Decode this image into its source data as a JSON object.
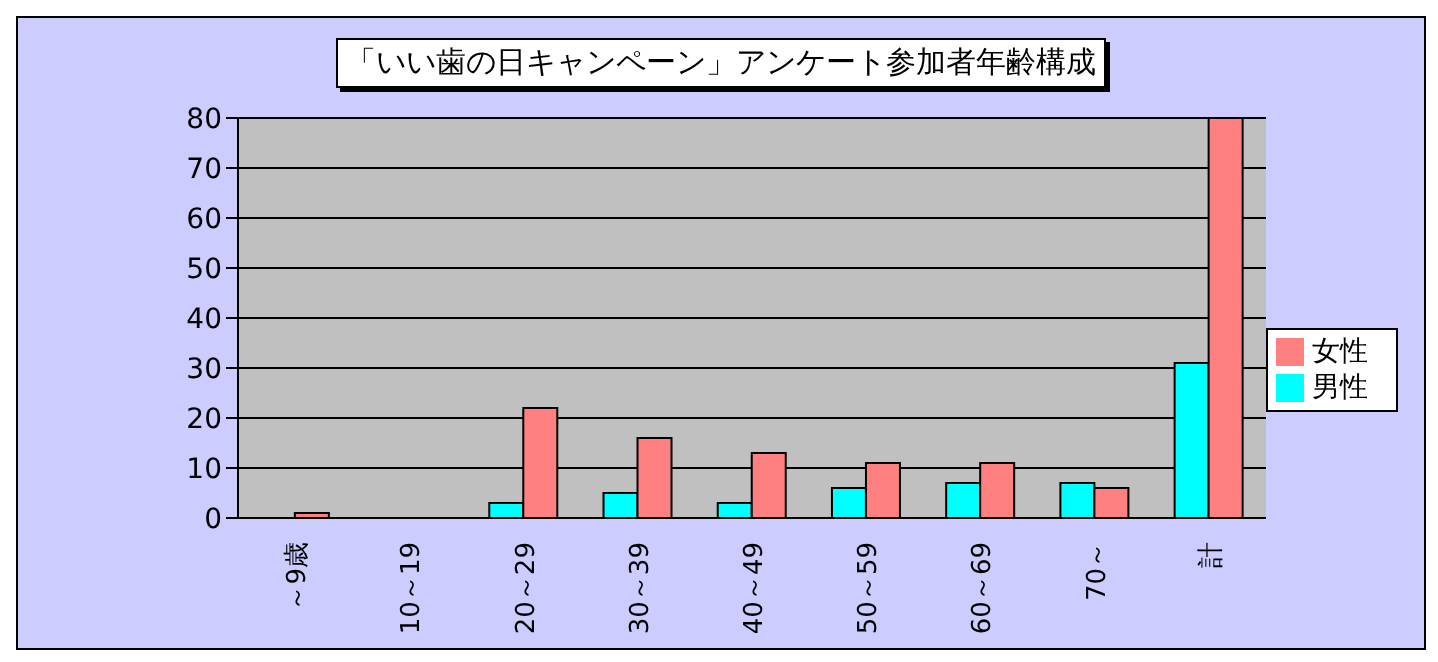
{
  "chart_data": {
    "type": "bar",
    "title": "「いい歯の日キャンペーン」アンケート参加者年齢構成",
    "categories": [
      "～9歳",
      "10～19",
      "20～29",
      "30～39",
      "40～49",
      "50～59",
      "60～69",
      "70～",
      "計"
    ],
    "series": [
      {
        "name": "男性",
        "color": "#00ffff",
        "values": [
          0,
          0,
          3,
          5,
          3,
          6,
          7,
          7,
          31
        ]
      },
      {
        "name": "女性",
        "color": "#ff8080",
        "values": [
          1,
          0,
          22,
          16,
          13,
          11,
          11,
          6,
          80
        ]
      }
    ],
    "ylim": [
      0,
      80
    ],
    "yticks": [
      0,
      10,
      20,
      30,
      40,
      50,
      60,
      70,
      80
    ],
    "grid": "y",
    "legend": "right"
  }
}
